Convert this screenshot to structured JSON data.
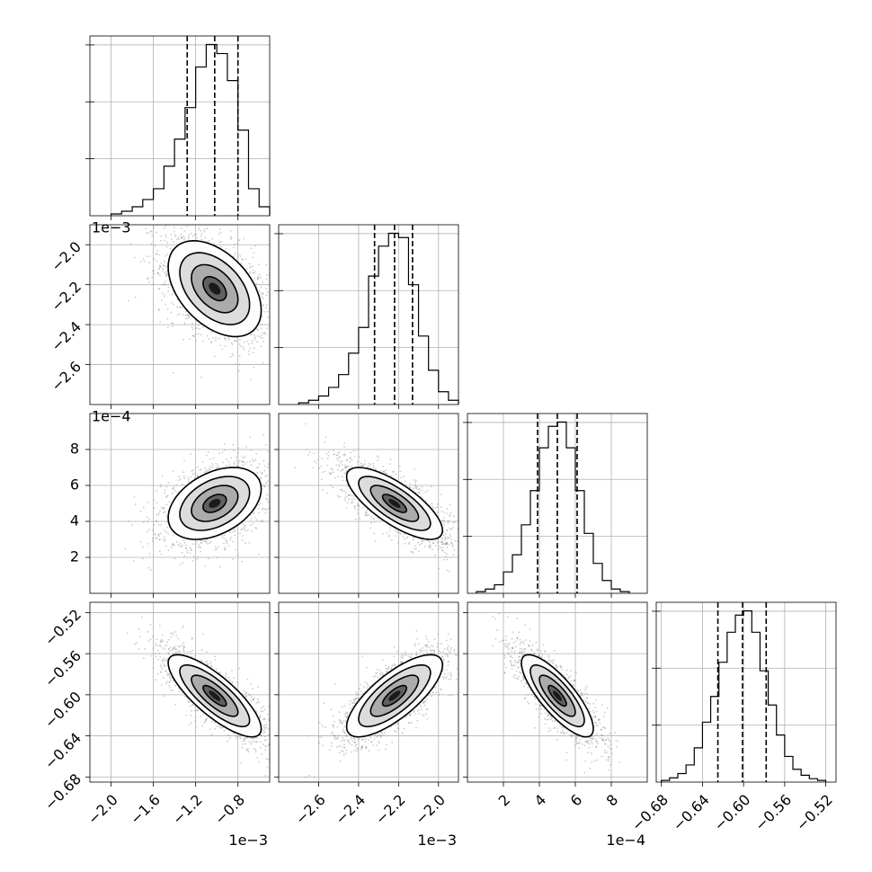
{
  "chart_data": {
    "type": "corner",
    "grid": true,
    "quantile_lines": "dashed",
    "parameters": [
      {
        "id": "p1",
        "range": [
          -2.2,
          -0.5
        ],
        "ticks": [
          -2.0,
          -1.6,
          -1.2,
          -0.8
        ],
        "tick_labels": [
          "−2.0",
          "−1.6",
          "−1.2",
          "−0.8"
        ],
        "offset_text": "1e−3",
        "quantiles": [
          -1.28,
          -1.02,
          -0.8
        ],
        "histogram": {
          "bins": [
            -2.0,
            -1.9,
            -1.8,
            -1.7,
            -1.6,
            -1.5,
            -1.4,
            -1.3,
            -1.2,
            -1.1,
            -1.0,
            -0.9,
            -0.8,
            -0.7,
            -0.6
          ],
          "counts": [
            2,
            5,
            10,
            18,
            30,
            55,
            85,
            120,
            165,
            190,
            180,
            150,
            95,
            30,
            10
          ]
        }
      },
      {
        "id": "p2",
        "range": [
          -2.8,
          -1.9
        ],
        "ticks": [
          -2.6,
          -2.4,
          -2.2,
          -2.0
        ],
        "tick_labels": [
          "−2.6",
          "−2.4",
          "−2.2",
          "−2.0"
        ],
        "offset_text": "1e−3",
        "quantiles": [
          -2.32,
          -2.22,
          -2.13
        ],
        "histogram": {
          "bins": [
            -2.7,
            -2.65,
            -2.6,
            -2.55,
            -2.5,
            -2.45,
            -2.4,
            -2.35,
            -2.3,
            -2.25,
            -2.2,
            -2.15,
            -2.1,
            -2.05,
            -2.0,
            -1.95
          ],
          "counts": [
            2,
            5,
            10,
            20,
            35,
            60,
            90,
            150,
            185,
            200,
            195,
            140,
            80,
            40,
            15,
            5
          ]
        }
      },
      {
        "id": "p3",
        "range": [
          0.0,
          10.0
        ],
        "ticks": [
          2,
          4,
          6,
          8
        ],
        "tick_labels": [
          "2",
          "4",
          "6",
          "8"
        ],
        "offset_text": "1e−4",
        "quantiles": [
          3.9,
          5.0,
          6.1
        ],
        "histogram": {
          "bins": [
            0.5,
            1.0,
            1.5,
            2.0,
            2.5,
            3.0,
            3.5,
            4.0,
            4.5,
            5.0,
            5.5,
            6.0,
            6.5,
            7.0,
            7.5,
            8.0,
            8.5
          ],
          "counts": [
            2,
            5,
            10,
            25,
            45,
            80,
            120,
            170,
            195,
            200,
            170,
            120,
            70,
            35,
            15,
            5,
            2
          ]
        }
      },
      {
        "id": "p4",
        "range": [
          -0.685,
          -0.51
        ],
        "ticks": [
          -0.68,
          -0.64,
          -0.6,
          -0.56,
          -0.52
        ],
        "tick_labels": [
          "−0.68",
          "−0.64",
          "−0.60",
          "−0.56",
          "−0.52"
        ],
        "offset_text": "",
        "quantiles": [
          -0.625,
          -0.601,
          -0.578
        ],
        "histogram": {
          "bins": [
            -0.68,
            -0.672,
            -0.664,
            -0.656,
            -0.648,
            -0.64,
            -0.632,
            -0.624,
            -0.616,
            -0.608,
            -0.6,
            -0.592,
            -0.584,
            -0.576,
            -0.568,
            -0.56,
            -0.552,
            -0.544,
            -0.536,
            -0.528
          ],
          "counts": [
            2,
            5,
            10,
            20,
            40,
            70,
            100,
            140,
            175,
            195,
            200,
            175,
            130,
            90,
            55,
            30,
            15,
            8,
            4,
            2
          ]
        }
      }
    ],
    "pairs": [
      {
        "x": "p1",
        "y": "p2",
        "center": [
          -1.02,
          -2.22
        ],
        "sigma": [
          0.22,
          0.12
        ],
        "rho": -0.45
      },
      {
        "x": "p1",
        "y": "p3",
        "center": [
          -1.02,
          5.0
        ],
        "sigma": [
          0.22,
          1.0
        ],
        "rho": 0.4
      },
      {
        "x": "p2",
        "y": "p3",
        "center": [
          -2.22,
          5.0
        ],
        "sigma": [
          0.12,
          1.0
        ],
        "rho": -0.75
      },
      {
        "x": "p1",
        "y": "p4",
        "center": [
          -1.02,
          -0.601
        ],
        "sigma": [
          0.22,
          0.02
        ],
        "rho": -0.8
      },
      {
        "x": "p2",
        "y": "p4",
        "center": [
          -2.22,
          -0.601
        ],
        "sigma": [
          0.12,
          0.02
        ],
        "rho": 0.75
      },
      {
        "x": "p3",
        "y": "p4",
        "center": [
          5.0,
          -0.601
        ],
        "sigma": [
          1.0,
          0.02
        ],
        "rho": -0.8
      }
    ],
    "contour_levels_sigma": [
      0.5,
      1.0,
      1.5,
      2.0
    ]
  }
}
